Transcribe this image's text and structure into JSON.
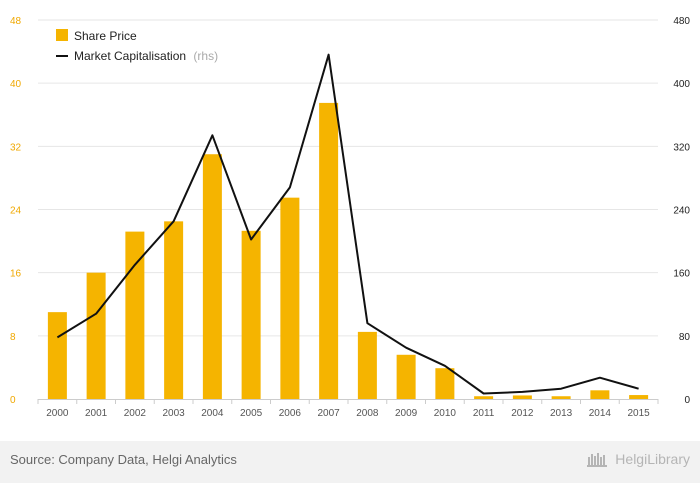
{
  "chart_data": {
    "type": "bar",
    "categories": [
      "2000",
      "2001",
      "2002",
      "2003",
      "2004",
      "2005",
      "2006",
      "2007",
      "2008",
      "2009",
      "2010",
      "2011",
      "2012",
      "2013",
      "2014",
      "2015"
    ],
    "series": [
      {
        "name": "Share Price",
        "type": "bar",
        "axis": "left",
        "color": "#f5b400",
        "values": [
          11.0,
          16.0,
          21.2,
          22.5,
          31.0,
          21.3,
          25.5,
          37.5,
          8.5,
          5.6,
          3.9,
          0.35,
          0.45,
          0.35,
          1.1,
          0.5
        ]
      },
      {
        "name": "Market Capitalisation",
        "name_suffix": "(rhs)",
        "type": "line",
        "axis": "right",
        "color": "#111111",
        "values": [
          78,
          108,
          170,
          225,
          334,
          202,
          268,
          436,
          96,
          65,
          42,
          7,
          9,
          13,
          27,
          13
        ]
      }
    ],
    "y_left": {
      "lim": [
        0,
        48
      ],
      "ticks": [
        "0",
        "8",
        "16",
        "24",
        "32",
        "40",
        "48"
      ],
      "color": "#f0a800"
    },
    "y_right": {
      "lim": [
        0,
        480
      ],
      "ticks": [
        "0",
        "80",
        "160",
        "240",
        "320",
        "400",
        "480"
      ]
    },
    "grid": true,
    "legend": "top-left"
  },
  "footer": {
    "source": "Source: Company Data, Helgi Analytics",
    "logo": "HelgiLibrary"
  }
}
